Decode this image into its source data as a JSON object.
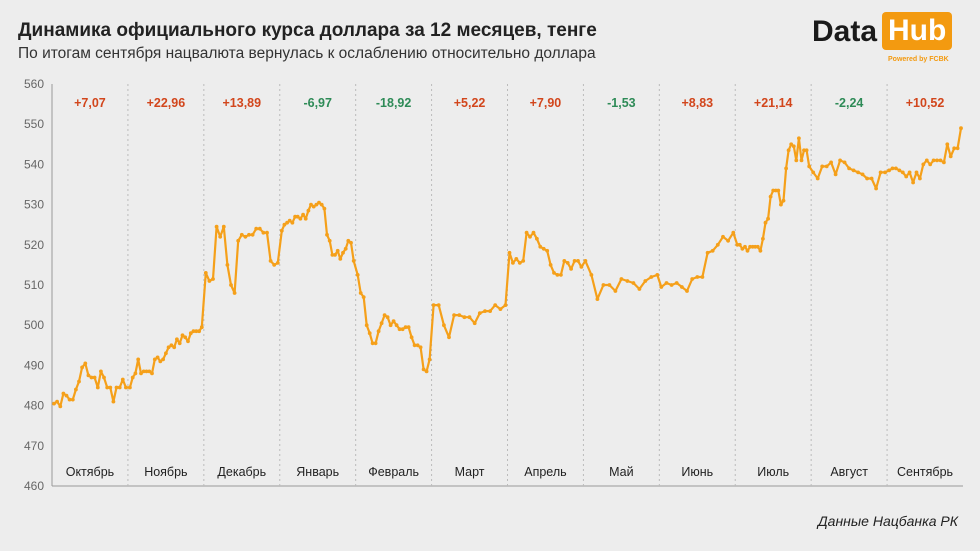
{
  "header": {
    "title": "Динамика официального курса доллара за 12 месяцев, тенге",
    "subtitle": "По итогам сентября нацвалюта вернулась к ослаблению относительно доллара"
  },
  "logo": {
    "word1": "Data",
    "word2": "Hub",
    "powered": "Powered by FCBK",
    "accent": "#f39a10"
  },
  "source": "Данные Нацбанка РК",
  "colors": {
    "line": "#f5a01a",
    "positive": "#d2461c",
    "negative": "#2e8b57",
    "divider": "#bbbbbb"
  },
  "chart_data": {
    "type": "line",
    "ylim": [
      460,
      560
    ],
    "yticks": [
      460,
      470,
      480,
      490,
      500,
      510,
      520,
      530,
      540,
      550,
      560
    ],
    "months": [
      {
        "label": "Октябрь",
        "change": "+7,07",
        "dir": "up"
      },
      {
        "label": "Ноябрь",
        "change": "+22,96",
        "dir": "up"
      },
      {
        "label": "Декабрь",
        "change": "+13,89",
        "dir": "up"
      },
      {
        "label": "Январь",
        "change": "-6,97",
        "dir": "down"
      },
      {
        "label": "Февраль",
        "change": "-18,92",
        "dir": "down"
      },
      {
        "label": "Март",
        "change": "+5,22",
        "dir": "up"
      },
      {
        "label": "Апрель",
        "change": "+7,90",
        "dir": "up"
      },
      {
        "label": "Май",
        "change": "-1,53",
        "dir": "down"
      },
      {
        "label": "Июнь",
        "change": "+8,83",
        "dir": "up"
      },
      {
        "label": "Июль",
        "change": "+21,14",
        "dir": "up"
      },
      {
        "label": "Август",
        "change": "-2,24",
        "dir": "down"
      },
      {
        "label": "Сентябрь",
        "change": "+10,52",
        "dir": "up"
      }
    ],
    "series": [
      {
        "values": [
          [
            480.5,
            481,
            479.8,
            483,
            482.5,
            481.5,
            481.5,
            484,
            486,
            489.5,
            490.5,
            487.5,
            487,
            487,
            484.5,
            488.5,
            487,
            484.5,
            484.5,
            481,
            484.5,
            484.5,
            486.5,
            484.5
          ],
          [
            484.5,
            487,
            488,
            491.5,
            488,
            488.5,
            488.5,
            488.5,
            488,
            491.5,
            492,
            491,
            491.5,
            493,
            494.5,
            495,
            494.5,
            496.5,
            495.5,
            497.5,
            497,
            496,
            498,
            498.5,
            498.5,
            498.5,
            499.5
          ],
          [
            513,
            511,
            511.5,
            524.5,
            522,
            524.5,
            515,
            510,
            508,
            521,
            522.5,
            522,
            522.5,
            522.5,
            524,
            524,
            523,
            523,
            516,
            515,
            515.5
          ],
          [
            523.5,
            525,
            525.5,
            526,
            525.5,
            527,
            527,
            526.5,
            527.5,
            526.5,
            528.5,
            530,
            529.5,
            530,
            530.5,
            530,
            529,
            522.5,
            521,
            517.5,
            517.5,
            518.5,
            516.5,
            518,
            519,
            521,
            520.5,
            516
          ],
          [
            512.5,
            508,
            507,
            500,
            498,
            495.5,
            495.5,
            498.5,
            500.5,
            502.5,
            502,
            500,
            501,
            500,
            499,
            499,
            499.5,
            499.5,
            497,
            495,
            495,
            494.5,
            489,
            488.5,
            491.5
          ],
          [
            505,
            505,
            500,
            497,
            502.5,
            502.5,
            502,
            502,
            500.5,
            503,
            503.5,
            503.5,
            505,
            504,
            505
          ],
          [
            518,
            515.5,
            516.5,
            515.5,
            516,
            523,
            522,
            523,
            521.5,
            519.5,
            519,
            518.5,
            515,
            513,
            512.5,
            512.5,
            516,
            515.5,
            514,
            516,
            516,
            514.5
          ],
          [
            516,
            512.5,
            506.5,
            510,
            510,
            508.5,
            511.5,
            511,
            510.5,
            509,
            511,
            512,
            512.5
          ],
          [
            509.5,
            510.5,
            510,
            510.5,
            509.5,
            508.5,
            511.5,
            512,
            512,
            518,
            518.5,
            520,
            522,
            521,
            523
          ],
          [
            520,
            520,
            519,
            519.5,
            518.5,
            519.5,
            519.5,
            519.5,
            519.5,
            518.5,
            521.5,
            525.5,
            526.5,
            532,
            533.5,
            533.5,
            533.5,
            530,
            531,
            539,
            543.5,
            545,
            544.5,
            541,
            546.5,
            541,
            543.5,
            543.5,
            539.5
          ],
          [
            538,
            536.5,
            539.5,
            539.5,
            540.5,
            537.5,
            541,
            540.5,
            539,
            538.5,
            538,
            537.5,
            536.5,
            536.5,
            534,
            538,
            538
          ],
          [
            538.5,
            539,
            539,
            538.5,
            538,
            537,
            538,
            535.5,
            538,
            536.5,
            540,
            541,
            540,
            541,
            541,
            541,
            540.5,
            545,
            542,
            544,
            544,
            549
          ]
        ]
      }
    ]
  }
}
